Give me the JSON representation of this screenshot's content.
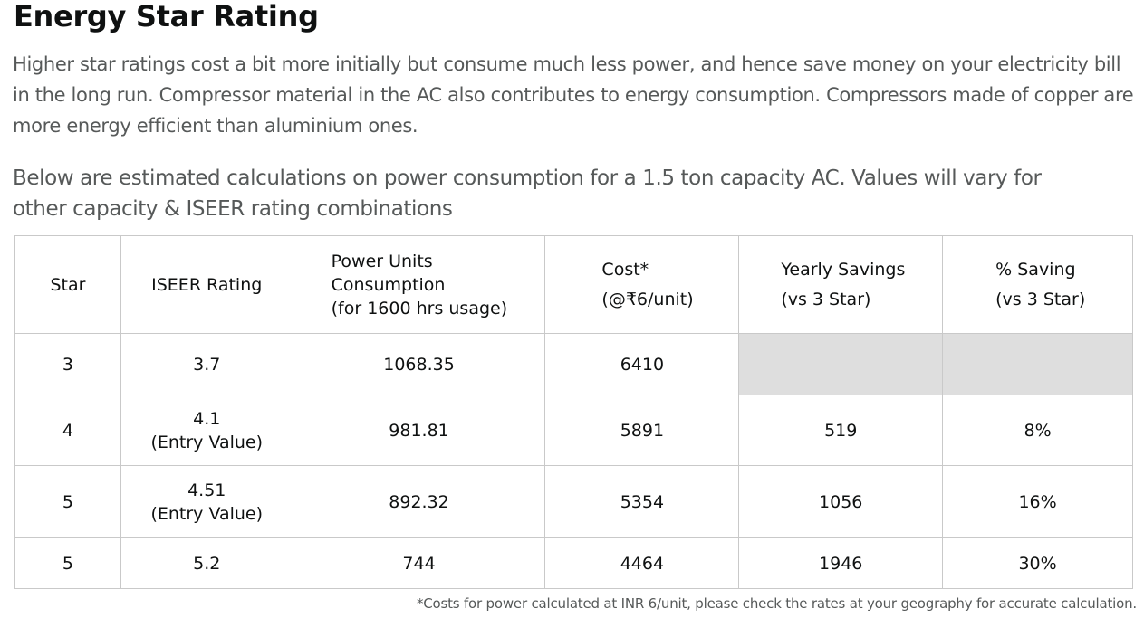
{
  "title": "Energy Star Rating",
  "intro": "Higher star ratings cost a bit more initially but consume much less power, and hence save money on your electricity bill in the long run. Compressor material in the AC also contributes to energy consumption. Compressors made of copper are more energy efficient than aluminium ones.",
  "note": "Below are estimated calculations on power consumption for a 1.5 ton capacity AC. Values will vary for other capacity & ISEER rating combinations",
  "table": {
    "headers": [
      [
        "Star"
      ],
      [
        "ISEER Rating"
      ],
      [
        "Power Units",
        "Consumption",
        "(for 1600 hrs usage)"
      ],
      [
        "Cost*",
        "(@₹6/unit)"
      ],
      [
        "Yearly Savings",
        "(vs 3 Star)"
      ],
      [
        "% Saving",
        "(vs 3 Star)"
      ]
    ],
    "rows": [
      {
        "star": "3",
        "iseer": "3.7",
        "iseer_note": "",
        "units": "1068.35",
        "cost": "6410",
        "savings": "",
        "pct": ""
      },
      {
        "star": "4",
        "iseer": "4.1",
        "iseer_note": "(Entry Value)",
        "units": "981.81",
        "cost": "5891",
        "savings": "519",
        "pct": "8%"
      },
      {
        "star": "5",
        "iseer": "4.51",
        "iseer_note": "(Entry Value)",
        "units": "892.32",
        "cost": "5354",
        "savings": "1056",
        "pct": "16%"
      },
      {
        "star": "5",
        "iseer": "5.2",
        "iseer_note": "",
        "units": "744",
        "cost": "4464",
        "savings": "1946",
        "pct": "30%"
      }
    ]
  },
  "footnote": "*Costs for power calculated at INR 6/unit, please check the rates at your geography for accurate calculation.",
  "colors": {
    "heading": "#0f1111",
    "body_text": "#565959",
    "table_border": "#c9c9c9",
    "empty_cell": "#dedede"
  }
}
